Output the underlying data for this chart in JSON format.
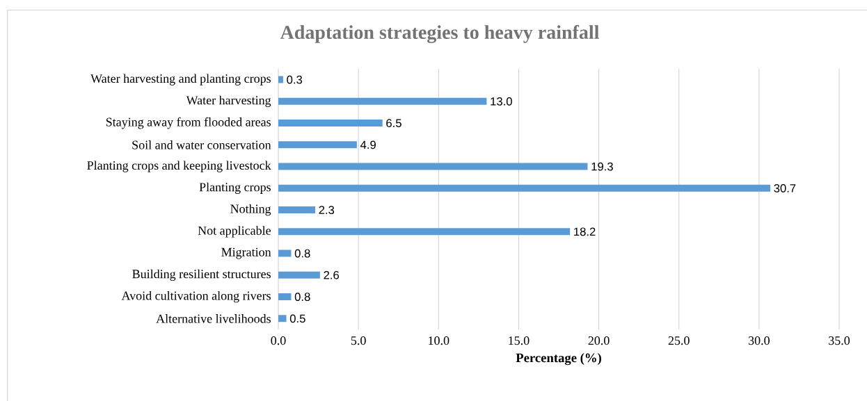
{
  "chart_data": {
    "type": "bar",
    "orientation": "horizontal",
    "title": "Adaptation strategies to heavy rainfall",
    "xlabel": "Percentage (%)",
    "categories": [
      "Water harvesting and planting crops",
      "Water harvesting",
      "Staying away from flooded areas",
      "Soil and water conservation",
      "Planting crops and keeping livestock",
      "Planting crops",
      "Nothing",
      "Not applicable",
      "Migration",
      "Building resilient structures",
      "Avoid cultivation along rivers",
      "Alternative livelihoods"
    ],
    "values": [
      0.3,
      13.0,
      6.5,
      4.9,
      19.3,
      30.7,
      2.3,
      18.2,
      0.8,
      2.6,
      0.8,
      0.5
    ],
    "value_labels": [
      "0.3",
      "13.0",
      "6.5",
      "4.9",
      "19.3",
      "30.7",
      "2.3",
      "18.2",
      "0.8",
      "2.6",
      "0.8",
      "0.5"
    ],
    "color": "#5b9bd5",
    "xlim": [
      0,
      35
    ],
    "xticks": [
      {
        "value": 0,
        "label": "0.0"
      },
      {
        "value": 5,
        "label": "5.0"
      },
      {
        "value": 10,
        "label": "10.0"
      },
      {
        "value": 15,
        "label": "15.0"
      },
      {
        "value": 20,
        "label": "20.0"
      },
      {
        "value": 25,
        "label": "25.0"
      },
      {
        "value": 30,
        "label": "30.0"
      },
      {
        "value": 35,
        "label": "35.0"
      }
    ],
    "grid": "x"
  }
}
